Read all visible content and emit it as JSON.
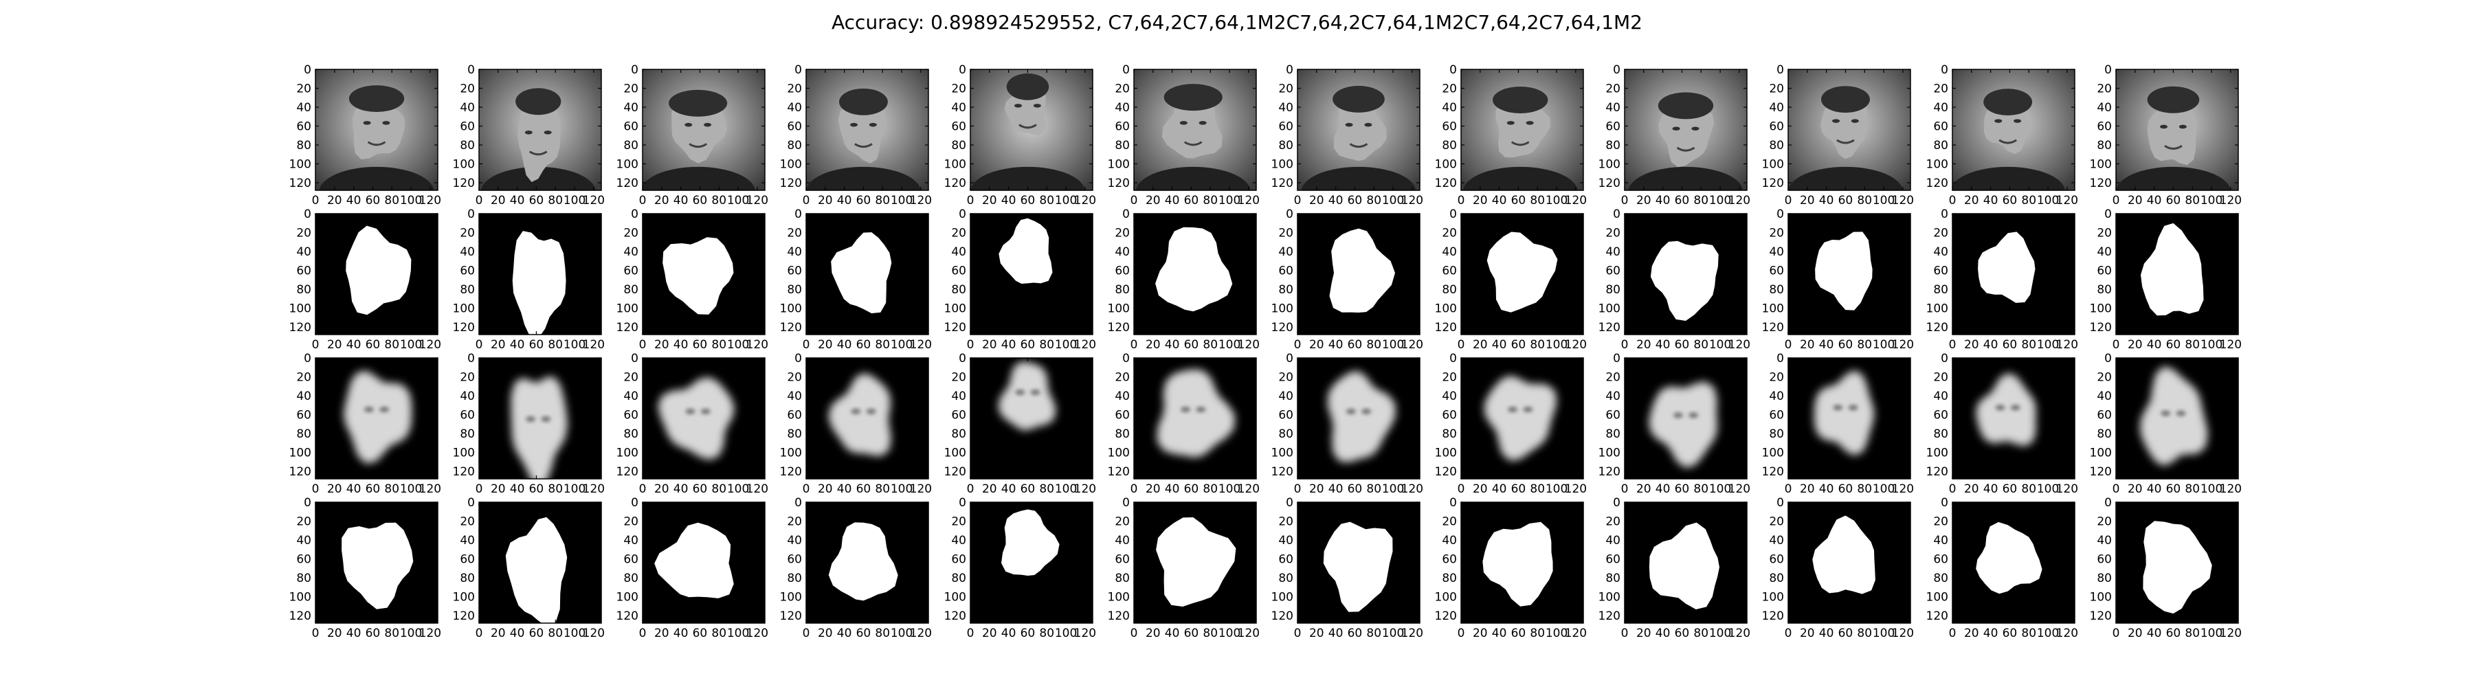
{
  "title": "Accuracy: 0.898924529552, C7,64,2C7,64,1M2C7,64,2C7,64,1M2C7,64,2C7,64,1M2",
  "chart_data": {
    "type": "image_grid",
    "title": "Accuracy: 0.898924529552, C7,64,2C7,64,1M2C7,64,2C7,64,1M2C7,64,2C7,64,1M2",
    "rows": [
      "input_photo",
      "ground_truth_mask",
      "predicted_probability",
      "thresholded_prediction"
    ],
    "columns": 12,
    "x_ticks": [
      "0",
      "20",
      "40",
      "60",
      "80",
      "100",
      "120"
    ],
    "y_ticks": [
      "0",
      "20",
      "40",
      "60",
      "80",
      "100",
      "120"
    ],
    "xlim": [
      0,
      128
    ],
    "ylim": [
      128,
      0
    ],
    "colormap": "gray",
    "grid": false
  }
}
